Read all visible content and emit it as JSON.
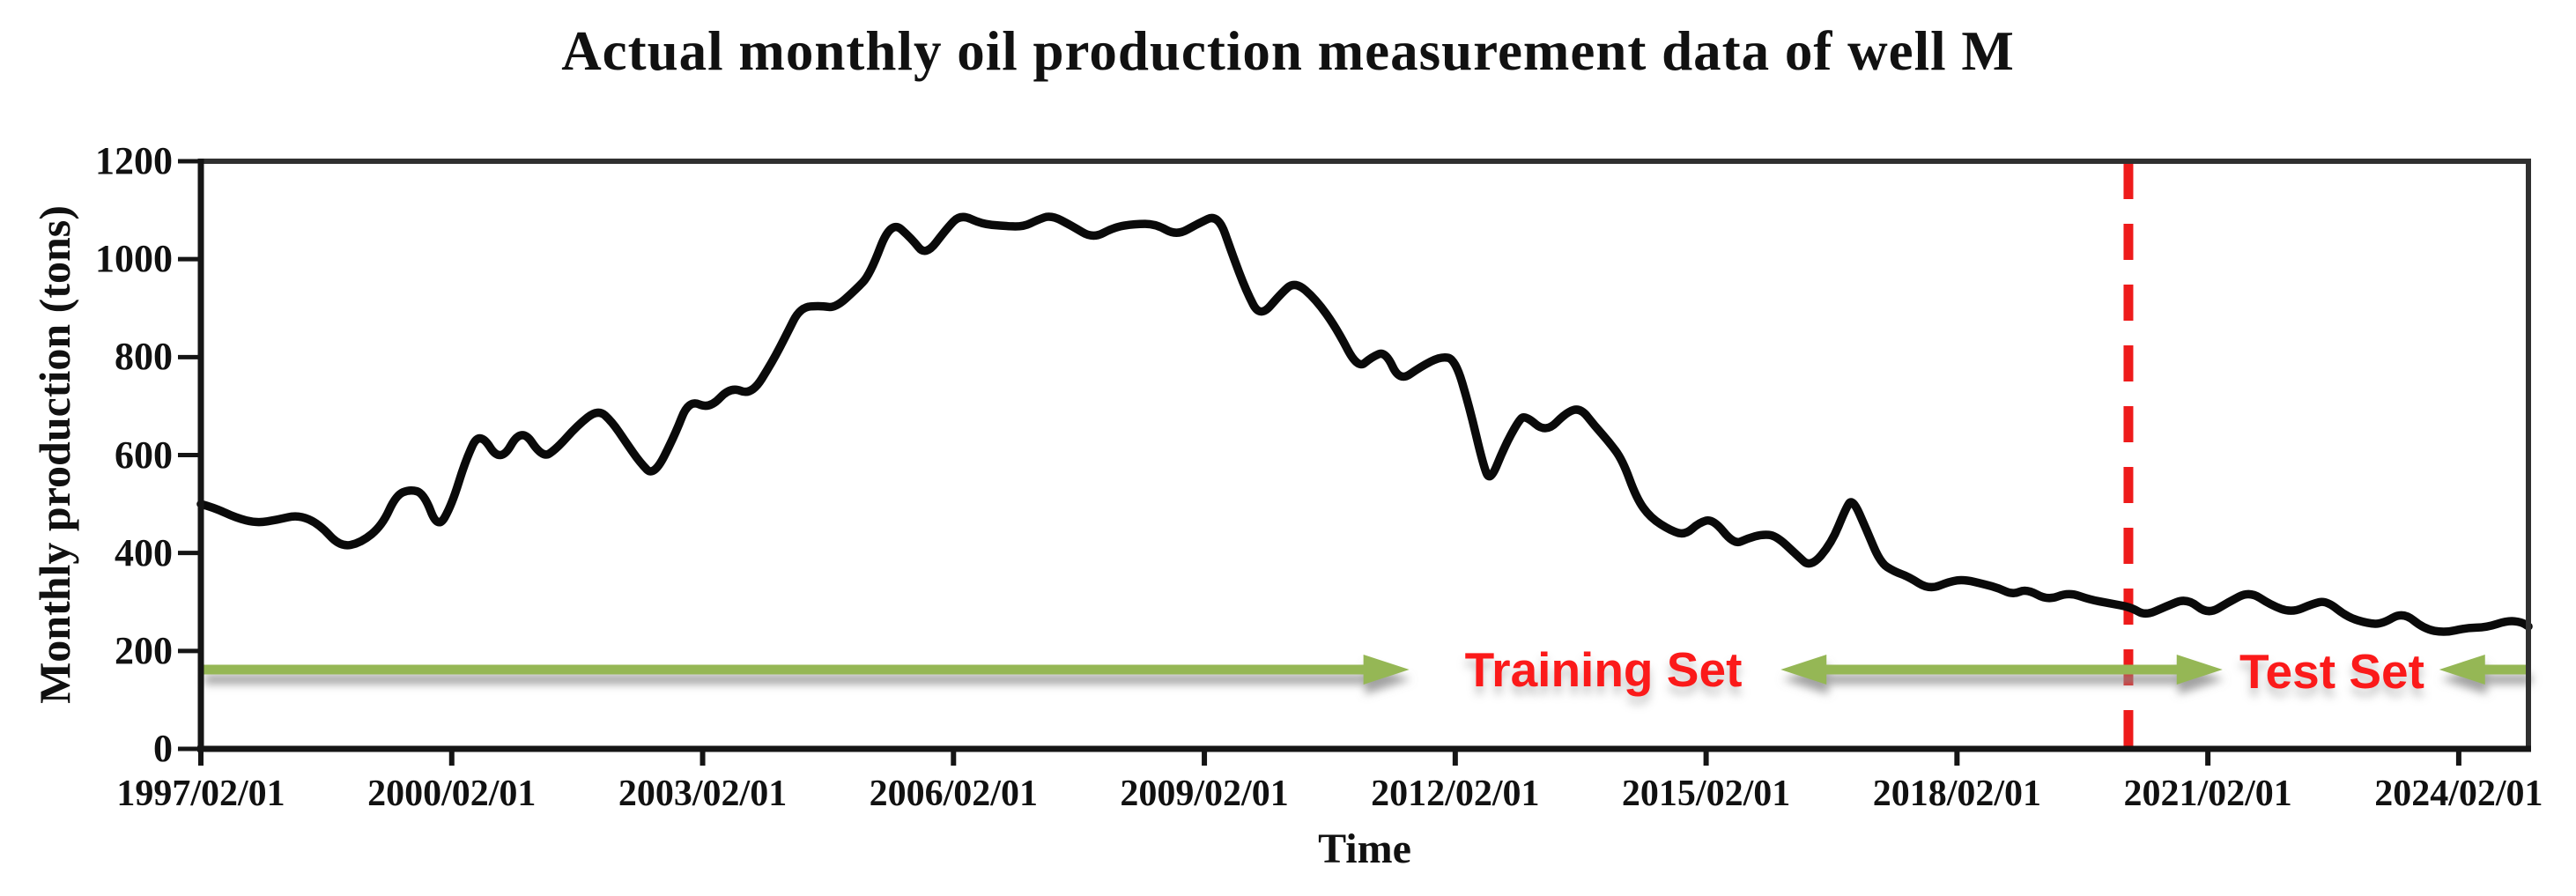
{
  "chart_data": {
    "type": "line",
    "title": "Actual monthly oil production measurement data of well M",
    "xlabel": "Time",
    "ylabel": "Monthly production (tons)",
    "ylim": [
      0,
      1200
    ],
    "y_ticks": [
      0,
      200,
      400,
      600,
      800,
      1000,
      1200
    ],
    "x_tick_labels": [
      "1997/02/01",
      "2000/02/01",
      "2003/02/01",
      "2006/02/01",
      "2009/02/01",
      "2012/02/01",
      "2015/02/01",
      "2018/02/01",
      "2021/02/01",
      "2024/02/01"
    ],
    "x_tick_spacing_months": 36,
    "x_total_months": 334,
    "grid": false,
    "legend": null,
    "series": [
      {
        "name": "Actual monthly oil production",
        "color": "#0a0a0a",
        "points": [
          [
            0,
            500
          ],
          [
            2,
            492
          ],
          [
            5,
            472
          ],
          [
            8,
            461
          ],
          [
            11,
            468
          ],
          [
            14,
            478
          ],
          [
            17,
            459
          ],
          [
            20,
            412
          ],
          [
            23,
            421
          ],
          [
            26,
            456
          ],
          [
            28,
            518
          ],
          [
            30,
            530
          ],
          [
            32,
            522
          ],
          [
            34,
            448
          ],
          [
            36,
            498
          ],
          [
            38,
            590
          ],
          [
            40,
            650
          ],
          [
            43,
            582
          ],
          [
            46,
            658
          ],
          [
            49,
            594
          ],
          [
            51,
            612
          ],
          [
            54,
            660
          ],
          [
            57,
            694
          ],
          [
            59,
            668
          ],
          [
            61,
            626
          ],
          [
            63,
            585
          ],
          [
            65,
            556
          ],
          [
            68,
            640
          ],
          [
            70,
            713
          ],
          [
            73,
            694
          ],
          [
            76,
            740
          ],
          [
            79,
            722
          ],
          [
            82,
            790
          ],
          [
            84,
            845
          ],
          [
            86,
            902
          ],
          [
            89,
            905
          ],
          [
            91,
            900
          ],
          [
            94,
            938
          ],
          [
            96,
            968
          ],
          [
            99,
            1080
          ],
          [
            102,
            1042
          ],
          [
            104,
            1006
          ],
          [
            107,
            1062
          ],
          [
            109,
            1092
          ],
          [
            112,
            1072
          ],
          [
            115,
            1068
          ],
          [
            118,
            1066
          ],
          [
            120,
            1080
          ],
          [
            122,
            1090
          ],
          [
            125,
            1068
          ],
          [
            128,
            1042
          ],
          [
            131,
            1065
          ],
          [
            134,
            1072
          ],
          [
            137,
            1072
          ],
          [
            140,
            1048
          ],
          [
            143,
            1072
          ],
          [
            146,
            1092
          ],
          [
            148,
            1010
          ],
          [
            150,
            935
          ],
          [
            152,
            880
          ],
          [
            155,
            930
          ],
          [
            157,
            955
          ],
          [
            160,
            918
          ],
          [
            163,
            858
          ],
          [
            166,
            776
          ],
          [
            168,
            800
          ],
          [
            170,
            812
          ],
          [
            172,
            750
          ],
          [
            175,
            780
          ],
          [
            178,
            802
          ],
          [
            180,
            795
          ],
          [
            182,
            700
          ],
          [
            184,
            580
          ],
          [
            185,
            545
          ],
          [
            187,
            615
          ],
          [
            189,
            668
          ],
          [
            190,
            682
          ],
          [
            193,
            645
          ],
          [
            196,
            688
          ],
          [
            198,
            696
          ],
          [
            200,
            660
          ],
          [
            202,
            628
          ],
          [
            204,
            590
          ],
          [
            206,
            512
          ],
          [
            208,
            472
          ],
          [
            211,
            445
          ],
          [
            213,
            437
          ],
          [
            215,
            462
          ],
          [
            217,
            470
          ],
          [
            220,
            417
          ],
          [
            222,
            430
          ],
          [
            224,
            438
          ],
          [
            226,
            436
          ],
          [
            229,
            396
          ],
          [
            231,
            370
          ],
          [
            234,
            420
          ],
          [
            236,
            490
          ],
          [
            237,
            512
          ],
          [
            239,
            448
          ],
          [
            241,
            380
          ],
          [
            243,
            362
          ],
          [
            245,
            352
          ],
          [
            248,
            325
          ],
          [
            251,
            342
          ],
          [
            253,
            346
          ],
          [
            256,
            336
          ],
          [
            258,
            328
          ],
          [
            260,
            315
          ],
          [
            262,
            327
          ],
          [
            265,
            303
          ],
          [
            268,
            320
          ],
          [
            271,
            305
          ],
          [
            274,
            297
          ],
          [
            277,
            289
          ],
          [
            279,
            272
          ],
          [
            282,
            291
          ],
          [
            285,
            308
          ],
          [
            288,
            274
          ],
          [
            291,
            300
          ],
          [
            294,
            322
          ],
          [
            297,
            294
          ],
          [
            300,
            278
          ],
          [
            303,
            296
          ],
          [
            305,
            303
          ],
          [
            308,
            269
          ],
          [
            311,
            256
          ],
          [
            313,
            255
          ],
          [
            316,
            280
          ],
          [
            319,
            245
          ],
          [
            322,
            237
          ],
          [
            325,
            247
          ],
          [
            328,
            248
          ],
          [
            331,
            262
          ],
          [
            333,
            259
          ],
          [
            334,
            250
          ]
        ]
      }
    ],
    "annotations": {
      "train_test_split": {
        "month": 276.6,
        "style": "dashed",
        "color": "#ee1b1b"
      },
      "training_set": {
        "label": "Training Set",
        "text_month": 201.3,
        "arrow_left": {
          "from_month": 0.3,
          "to_month": 173.4,
          "head": "right"
        },
        "arrow_right": {
          "from_month": 226.7,
          "to_month": 290.1,
          "head": "both"
        }
      },
      "test_set": {
        "label": "Test Set",
        "text_month": 305.8,
        "arrow_right": {
          "from_month": 321.2,
          "to_month": 334.2,
          "head": "left"
        }
      },
      "arrow_level_value": 162
    },
    "colors": {
      "curve": "#0a0a0a",
      "split_line_red": "#ee1b1b",
      "annotation_text_red": "#fb1a1a",
      "arrow_green": "#95b755",
      "axis": "#151515",
      "box": "#303030"
    }
  }
}
